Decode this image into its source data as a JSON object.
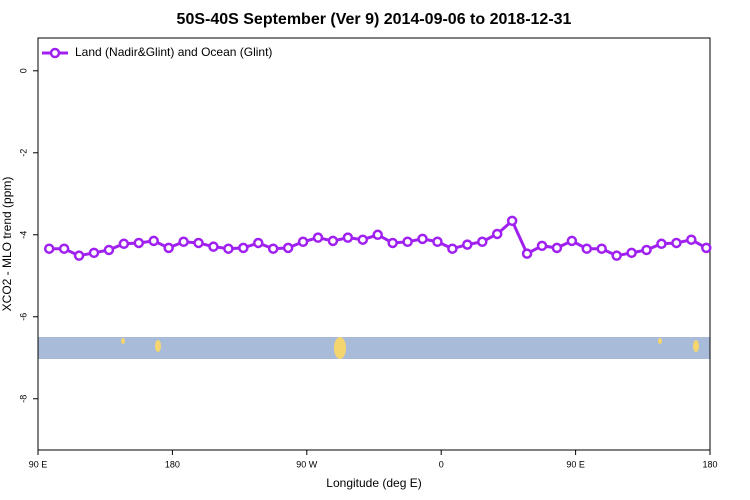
{
  "chart_data": {
    "type": "line",
    "title": "50S-40S September (Ver 9)   2014-09-06 to 2018-12-31",
    "x_label": "Longitude (deg E)",
    "y_label": "XCO2 - MLO trend (ppm)",
    "x": [
      97.5,
      107.5,
      117.5,
      127.5,
      137.5,
      147.5,
      157.5,
      167.5,
      177.5,
      187.5,
      197.5,
      207.5,
      217.5,
      227.5,
      237.5,
      247.5,
      257.5,
      267.5,
      277.5,
      287.5,
      297.5,
      307.5,
      317.5,
      327.5,
      337.5,
      347.5,
      357.5,
      367.5,
      377.5,
      387.5,
      397.5,
      407.5,
      417.5,
      427.5,
      437.5,
      447.5,
      457.5,
      467.5,
      477.5,
      487.5,
      497.5,
      507.5,
      517.5,
      527.5,
      537.5
    ],
    "series": [
      {
        "name": "Land (Nadir&Glint) and Ocean (Glint)",
        "color": "#a020f0",
        "values": [
          -4.34,
          -4.34,
          -4.51,
          -4.44,
          -4.37,
          -4.22,
          -4.2,
          -4.15,
          -4.32,
          -4.17,
          -4.2,
          -4.29,
          -4.34,
          -4.32,
          -4.2,
          -4.34,
          -4.32,
          -4.17,
          -4.07,
          -4.15,
          -4.07,
          -4.12,
          -4.0,
          -4.2,
          -4.17,
          -4.1,
          -4.17,
          -4.34,
          -4.24,
          -4.17,
          -3.98,
          -3.66,
          -4.46,
          -4.27,
          -4.32,
          -4.15,
          -4.34,
          -4.34,
          -4.51,
          -4.44,
          -4.37,
          -4.22,
          -4.2,
          -4.12,
          -4.32
        ]
      }
    ],
    "xlim": [
      90,
      540
    ],
    "xticks": [
      {
        "value": 90,
        "label": "90 E"
      },
      {
        "value": 180,
        "label": "180"
      },
      {
        "value": 270,
        "label": "90 W"
      },
      {
        "value": 360,
        "label": "0"
      },
      {
        "value": 450,
        "label": "90 E"
      },
      {
        "value": 540,
        "label": "180"
      }
    ],
    "ylim": [
      -9.25,
      0.8
    ],
    "yticks": [
      0,
      -2,
      -4,
      -6,
      -8
    ],
    "legend": "top-left"
  }
}
